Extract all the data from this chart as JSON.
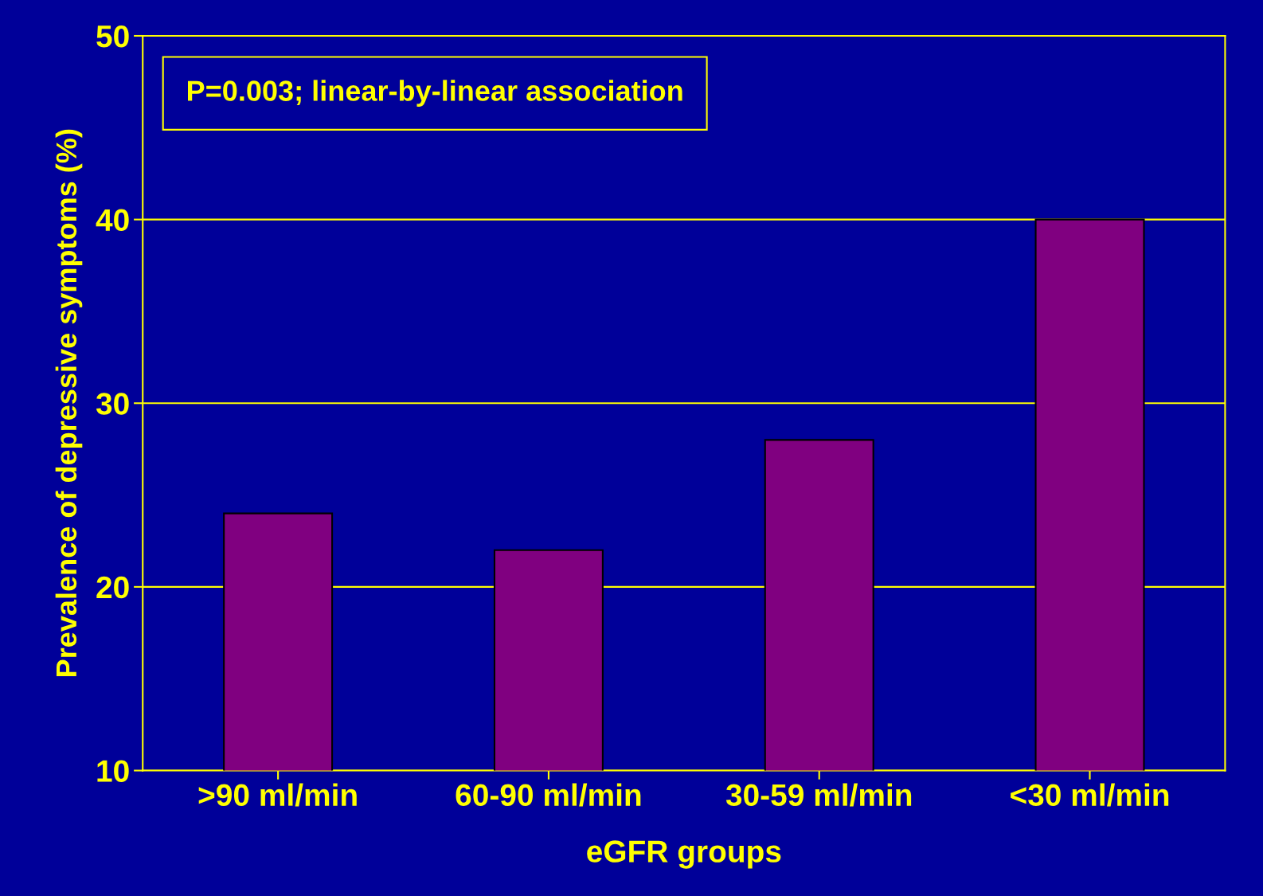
{
  "chart_data": {
    "type": "bar",
    "xlabel": "eGFR groups",
    "ylabel": "Prevalence of depressive symptoms (%)",
    "categories": [
      ">90 ml/min",
      "60-90 ml/min",
      "30-59 ml/min",
      "<30 ml/min"
    ],
    "values": [
      24,
      22,
      28,
      40
    ],
    "color": "#800080",
    "ylim": [
      10,
      50
    ],
    "yticks": [
      10,
      20,
      30,
      40,
      50
    ],
    "grid": "y",
    "annotations": [
      "P=0.003; linear-by-linear association"
    ]
  }
}
